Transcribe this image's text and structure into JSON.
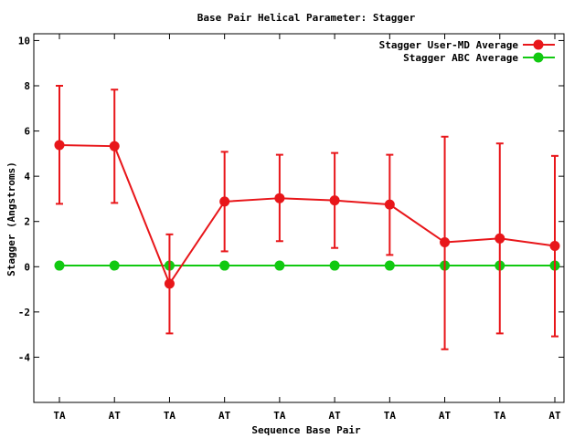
{
  "chart_data": {
    "type": "line",
    "title": "Base Pair Helical Parameter: Stagger",
    "xlabel": "Sequence Base Pair",
    "ylabel": "Stagger (Angstroms)",
    "categories": [
      "TA",
      "AT",
      "TA",
      "AT",
      "TA",
      "AT",
      "TA",
      "AT",
      "TA",
      "AT"
    ],
    "ylim": [
      -6,
      10.3
    ],
    "yticks": [
      -4,
      -2,
      0,
      2,
      4,
      6,
      8,
      10
    ],
    "grid": false,
    "legend_position": "top-right",
    "series": [
      {
        "name": "Stagger User-MD Average",
        "color": "#e8161a",
        "values": [
          5.38,
          5.33,
          -0.75,
          2.88,
          3.03,
          2.93,
          2.75,
          1.08,
          1.25,
          0.92
        ],
        "error_low": [
          2.78,
          2.82,
          -2.95,
          0.68,
          1.13,
          0.83,
          0.52,
          -3.65,
          -2.95,
          -3.08
        ],
        "error_high": [
          8.0,
          7.83,
          1.43,
          5.08,
          4.95,
          5.03,
          4.95,
          5.75,
          5.45,
          4.9
        ]
      },
      {
        "name": "Stagger ABC Average",
        "color": "#11c911",
        "values": [
          0.05,
          0.05,
          0.05,
          0.05,
          0.05,
          0.05,
          0.05,
          0.05,
          0.05,
          0.05
        ]
      }
    ]
  }
}
